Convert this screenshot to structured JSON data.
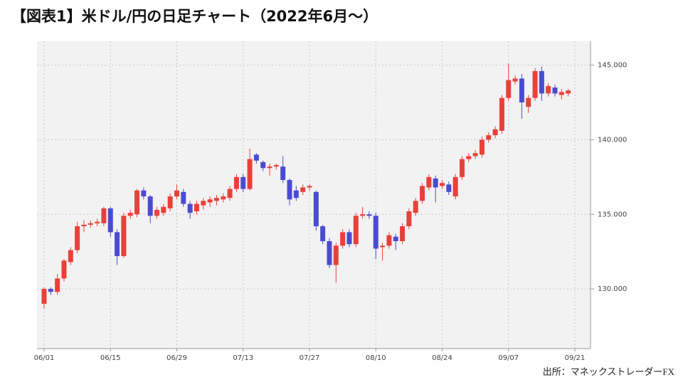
{
  "chart_data": {
    "type": "candlestick",
    "title": "【図表1】米ドル/円の日足チャート（2022年6月〜）",
    "source": "出所：マネックストレーダーFX",
    "categories": [
      "06/01",
      null,
      null,
      null,
      null,
      null,
      null,
      null,
      null,
      null,
      "06/15",
      null,
      null,
      null,
      null,
      null,
      null,
      null,
      null,
      null,
      "06/29",
      null,
      null,
      null,
      null,
      null,
      null,
      null,
      null,
      null,
      "07/13",
      null,
      null,
      null,
      null,
      null,
      null,
      null,
      null,
      null,
      "07/27",
      null,
      null,
      null,
      null,
      null,
      null,
      null,
      null,
      null,
      "08/10",
      null,
      null,
      null,
      null,
      null,
      null,
      null,
      null,
      null,
      "08/24",
      null,
      null,
      null,
      null,
      null,
      null,
      null,
      null,
      null,
      "09/07",
      null,
      null,
      null,
      null,
      null,
      null,
      null,
      null,
      null,
      "09/21"
    ],
    "open": [
      129.0,
      130.0,
      129.8,
      130.7,
      131.8,
      132.6,
      134.2,
      134.3,
      134.4,
      134.4,
      135.4,
      133.8,
      132.2,
      134.9,
      135.0,
      136.6,
      136.2,
      134.9,
      135.1,
      135.4,
      136.2,
      136.5,
      135.7,
      135.2,
      135.6,
      135.8,
      135.9,
      136.0,
      136.1,
      136.7,
      137.5,
      136.7,
      139.0,
      138.5,
      138.1,
      138.2,
      138.2,
      137.3,
      136.6,
      136.5,
      136.8,
      136.5,
      134.2,
      133.2,
      131.6,
      132.9,
      133.8,
      133.0,
      134.9,
      135.0,
      134.9,
      132.8,
      132.9,
      133.5,
      133.2,
      134.2,
      135.1,
      135.9,
      136.8,
      137.4,
      136.9,
      137.0,
      136.2,
      137.5,
      138.7,
      138.9,
      139.0,
      140.0,
      140.3,
      140.6,
      142.8,
      143.9,
      144.1,
      142.2,
      142.8,
      144.6,
      143.1,
      143.5,
      143.0,
      143.1,
      null
    ],
    "high": [
      130.1,
      130.1,
      131.0,
      132.0,
      132.8,
      134.5,
      134.6,
      134.6,
      134.7,
      135.5,
      135.5,
      134.0,
      135.1,
      135.3,
      136.7,
      136.8,
      136.3,
      135.5,
      135.7,
      136.4,
      137.0,
      136.7,
      135.9,
      135.9,
      136.1,
      136.2,
      136.3,
      136.4,
      136.9,
      137.7,
      137.7,
      139.4,
      139.1,
      138.6,
      138.4,
      138.4,
      138.9,
      137.4,
      136.9,
      137.0,
      137.0,
      136.6,
      134.3,
      133.4,
      133.1,
      134.0,
      134.0,
      135.1,
      135.5,
      135.2,
      135.1,
      133.1,
      133.8,
      133.7,
      134.4,
      135.4,
      136.1,
      137.1,
      137.7,
      137.6,
      137.3,
      137.2,
      137.7,
      138.9,
      139.1,
      139.3,
      140.2,
      140.5,
      140.9,
      143.0,
      145.1,
      144.3,
      144.4,
      143.0,
      144.8,
      144.9,
      143.8,
      143.7,
      143.4,
      143.4,
      null
    ],
    "low": [
      128.7,
      129.6,
      129.6,
      130.5,
      131.6,
      132.4,
      133.8,
      134.1,
      134.2,
      134.2,
      133.5,
      131.6,
      132.1,
      134.7,
      134.8,
      136.0,
      134.4,
      134.7,
      134.9,
      135.2,
      136.0,
      135.5,
      134.7,
      135.0,
      135.3,
      135.5,
      135.6,
      135.8,
      135.9,
      136.5,
      136.5,
      136.6,
      138.4,
      137.9,
      137.6,
      138.0,
      137.1,
      135.6,
      135.9,
      136.3,
      136.6,
      133.9,
      133.0,
      131.4,
      130.4,
      132.7,
      132.8,
      132.8,
      134.7,
      134.7,
      132.0,
      131.9,
      132.7,
      132.6,
      133.0,
      134.0,
      134.9,
      135.7,
      136.6,
      135.8,
      136.7,
      136.3,
      136.0,
      137.3,
      138.5,
      138.7,
      138.8,
      139.8,
      140.1,
      140.4,
      142.6,
      143.7,
      141.4,
      141.8,
      142.6,
      142.6,
      142.9,
      142.9,
      142.7,
      142.9,
      null
    ],
    "close": [
      130.0,
      129.8,
      130.7,
      131.9,
      132.6,
      134.2,
      134.3,
      134.4,
      134.5,
      135.4,
      133.8,
      132.2,
      134.9,
      135.1,
      136.6,
      136.2,
      134.9,
      135.3,
      135.5,
      136.2,
      136.6,
      135.7,
      135.1,
      135.7,
      135.9,
      136.0,
      136.1,
      136.2,
      136.7,
      137.5,
      136.7,
      138.7,
      138.6,
      138.1,
      138.2,
      138.3,
      137.3,
      136.0,
      136.1,
      136.8,
      136.9,
      134.2,
      133.2,
      131.6,
      132.9,
      133.8,
      133.0,
      134.9,
      135.0,
      134.9,
      132.7,
      132.9,
      133.6,
      133.2,
      134.2,
      135.2,
      135.9,
      136.9,
      137.5,
      136.8,
      137.1,
      136.5,
      137.5,
      138.7,
      138.9,
      139.1,
      140.0,
      140.3,
      140.7,
      142.8,
      144.0,
      144.1,
      142.5,
      142.8,
      144.6,
      143.1,
      143.6,
      143.1,
      143.2,
      143.3,
      null
    ],
    "up_color": "#e8413a",
    "down_color": "#4b4bd0",
    "ylim": [
      126.0,
      146.6
    ],
    "yticks": [
      {
        "value": 130,
        "label": "130.000"
      },
      {
        "value": 135,
        "label": "135.000"
      },
      {
        "value": 140,
        "label": "140.000"
      },
      {
        "value": 145,
        "label": "145.000"
      }
    ],
    "grid": true
  }
}
